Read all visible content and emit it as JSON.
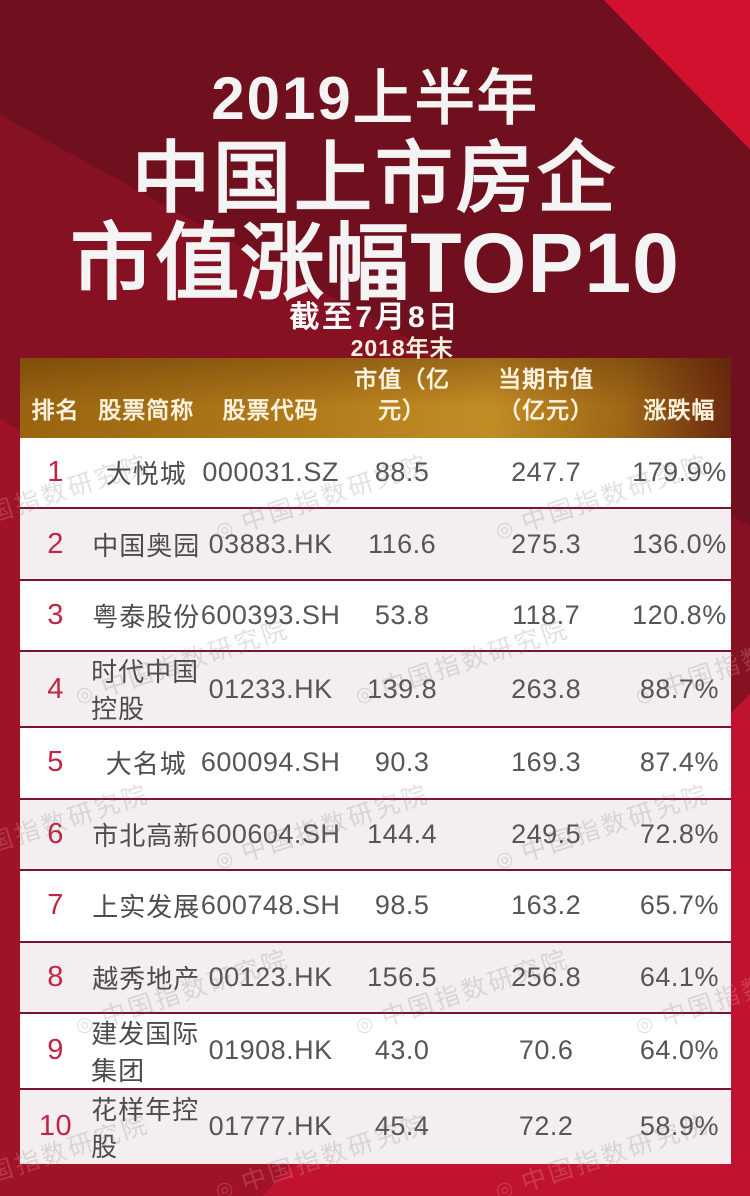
{
  "title": {
    "line1": "2019上半年",
    "line2": "中国上市房企",
    "line3": "市值涨幅TOP10",
    "date": "截至7月8日"
  },
  "watermark": {
    "logo_icon": "◎",
    "text": "中国指数研究院"
  },
  "colors": {
    "base_maroon": "#70101f",
    "bright_red": "#d2112f",
    "bottom_red": "#c01330",
    "gold_header": "#b8831f",
    "rank_red": "#c12544",
    "row_alt": "#f4eef0",
    "row_separator": "#7c1430",
    "header_text": "#fcf2dd",
    "cell_text": "#56565a"
  },
  "table_display": {
    "headers": [
      {
        "l1": "排名"
      },
      {
        "l1": "股票简称"
      },
      {
        "l1": "股票代码"
      },
      {
        "l1": "2018年末",
        "l2": "市值（亿元）"
      },
      {
        "l1": "当期市值",
        "l2": "（亿元）"
      },
      {
        "l1": "涨跌幅"
      }
    ]
  },
  "chart_data": {
    "type": "table",
    "title": "2019上半年中国上市房企市值涨幅TOP10",
    "subtitle": "截至7月8日",
    "columns": [
      "排名",
      "股票简称",
      "股票代码",
      "2018年末市值（亿元）",
      "当期市值（亿元）",
      "涨跌幅"
    ],
    "rows": [
      [
        "1",
        "大悦城",
        "000031.SZ",
        "88.5",
        "247.7",
        "179.9%"
      ],
      [
        "2",
        "中国奥园",
        "03883.HK",
        "116.6",
        "275.3",
        "136.0%"
      ],
      [
        "3",
        "粤泰股份",
        "600393.SH",
        "53.8",
        "118.7",
        "120.8%"
      ],
      [
        "4",
        "时代中国控股",
        "01233.HK",
        "139.8",
        "263.8",
        "88.7%"
      ],
      [
        "5",
        "大名城",
        "600094.SH",
        "90.3",
        "169.3",
        "87.4%"
      ],
      [
        "6",
        "市北高新",
        "600604.SH",
        "144.4",
        "249.5",
        "72.8%"
      ],
      [
        "7",
        "上实发展",
        "600748.SH",
        "98.5",
        "163.2",
        "65.7%"
      ],
      [
        "8",
        "越秀地产",
        "00123.HK",
        "156.5",
        "256.8",
        "64.1%"
      ],
      [
        "9",
        "建发国际集团",
        "01908.HK",
        "43.0",
        "70.6",
        "64.0%"
      ],
      [
        "10",
        "花样年控股",
        "01777.HK",
        "45.4",
        "72.2",
        "58.9%"
      ]
    ]
  }
}
